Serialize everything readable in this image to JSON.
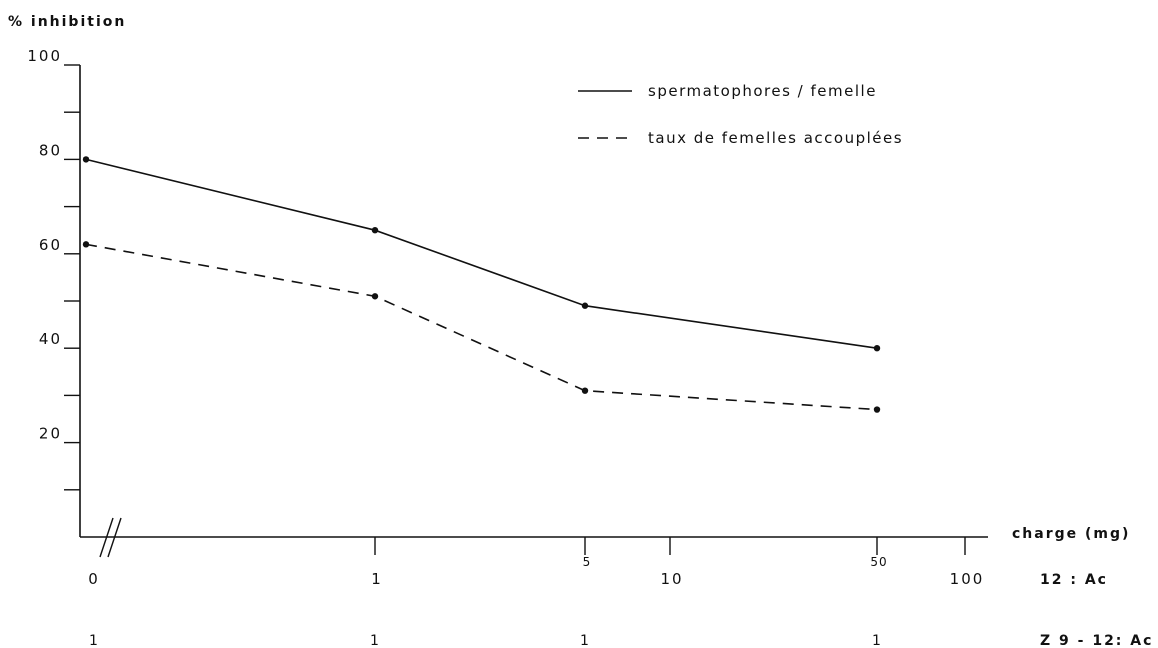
{
  "chart_data": {
    "type": "line",
    "ylabel": "% inhibition",
    "xlabel": "charge (mg)",
    "ylim": [
      0,
      100
    ],
    "y_ticks": [
      100,
      80,
      60,
      40,
      20
    ],
    "x_tick_labels": [
      {
        "pos": 0,
        "text": "0",
        "size": "large"
      },
      {
        "pos": 1,
        "text": "1",
        "size": "large"
      },
      {
        "pos": 2,
        "text": "5",
        "size": "small"
      },
      {
        "pos": 3,
        "text": "10",
        "size": "large"
      },
      {
        "pos": 4,
        "text": "50",
        "size": "small"
      },
      {
        "pos": 5,
        "text": "100",
        "size": "large"
      }
    ],
    "row_labels": {
      "row1": "12 : Ac",
      "row2": "Z 9 - 12: Ac"
    },
    "z9_values": [
      "1",
      "1",
      "1",
      "1"
    ],
    "x": [
      "0",
      "1",
      "5",
      "50"
    ],
    "series": [
      {
        "name": "spermatophores / femelle",
        "dash": "solid",
        "values": [
          80,
          65,
          49,
          40
        ]
      },
      {
        "name": "taux de femelles accouplées",
        "dash": "dashed",
        "values": [
          62,
          51,
          31,
          27
        ]
      }
    ],
    "legend_position": "top-right",
    "grid": false
  }
}
